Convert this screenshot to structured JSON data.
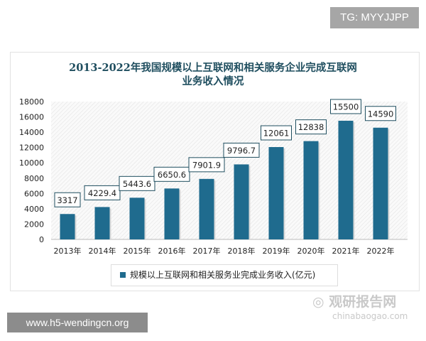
{
  "watermark_top": "TG: MYYJJPP",
  "watermark_bottom": "www.h5-wendingcn.org",
  "logo_watermark": {
    "name": "观研报告网",
    "url_text": "chinabaogao.com"
  },
  "chart_data": {
    "type": "bar",
    "title_line1": "2013-2022年我国规模以上互联网和相关服务企业完成互联网",
    "title_line2": "业务收入情况",
    "categories": [
      "2013年",
      "2014年",
      "2015年",
      "2016年",
      "2017年",
      "2018年",
      "2019年",
      "2020年",
      "2021年",
      "2022年"
    ],
    "series": [
      {
        "name": "规模以上互联网和相关服务业完成业务收入(亿元)",
        "values": [
          3317,
          4229.4,
          5443.6,
          6650.6,
          7901.9,
          9796.7,
          12061,
          12838,
          15500,
          14590
        ],
        "color": "#1f6b8e"
      }
    ],
    "data_labels": [
      "3317",
      "4229.4",
      "5443.6",
      "6650.6",
      "7901.9",
      "9796.7",
      "12061",
      "12838",
      "15500",
      "14590"
    ],
    "yticks": [
      "0",
      "2000",
      "4000",
      "6000",
      "8000",
      "10000",
      "12000",
      "14000",
      "16000",
      "18000"
    ],
    "ylim": [
      0,
      18000
    ],
    "legend_position": "bottom",
    "grid": false
  }
}
